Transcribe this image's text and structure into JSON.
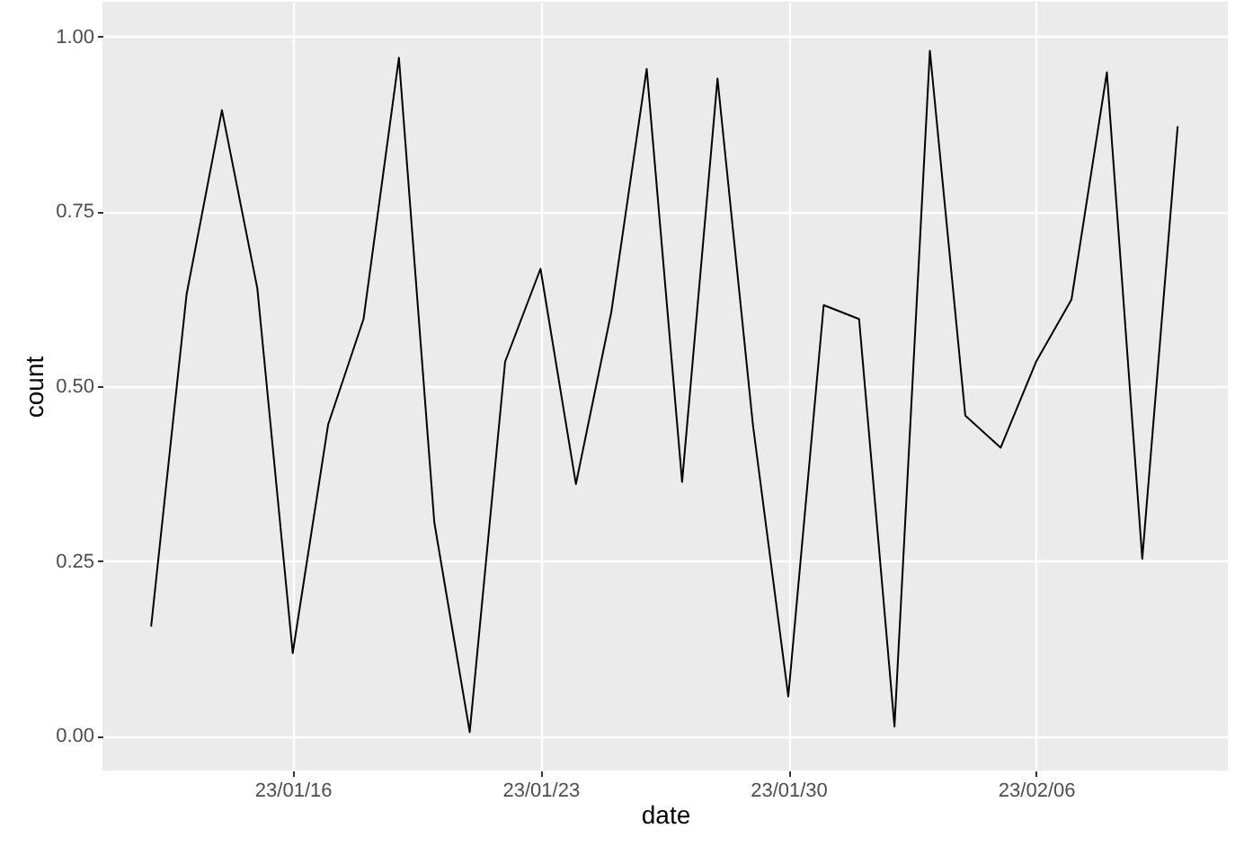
{
  "chart_data": {
    "type": "line",
    "xlabel": "date",
    "ylabel": "count",
    "x": [
      "--01-12",
      "--01-13",
      "--01-14",
      "--01-15",
      "--01-16",
      "--01-17",
      "--01-18",
      "--01-19",
      "--01-20",
      "--01-21",
      "--01-22",
      "--01-23",
      "--01-24",
      "--01-25",
      "--01-26",
      "--01-27",
      "--01-28",
      "--01-29",
      "--01-30",
      "--01-31",
      "--02-01",
      "--02-02",
      "--02-03",
      "--02-04",
      "--02-05",
      "--02-06",
      "--02-07",
      "--02-08",
      "--02-09",
      "--02-10"
    ],
    "series": [
      {
        "color": "#000000",
        "values": [
          0.156,
          0.631,
          0.895,
          0.64,
          0.118,
          0.445,
          0.596,
          0.97,
          0.305,
          0.005,
          0.535,
          0.668,
          0.36,
          0.606,
          0.954,
          0.363,
          0.94,
          0.445,
          0.056,
          0.616,
          0.596,
          0.013,
          0.98,
          0.458,
          0.412,
          0.535,
          0.624,
          0.949,
          0.253,
          0.872
        ]
      }
    ],
    "xlim": [
      "--01-10T15:00",
      "--02-11T10:00"
    ],
    "xticks": [
      {
        "value": "--01-16",
        "label": "23/01/16"
      },
      {
        "value": "--01-23",
        "label": "23/01/23"
      },
      {
        "value": "--01-30",
        "label": "23/01/30"
      },
      {
        "value": "--02-06",
        "label": "23/02/06"
      }
    ],
    "ylim": [
      -0.05,
      1.05
    ],
    "yticks": [
      {
        "value": 0,
        "label": "0.00"
      },
      {
        "value": 0.25,
        "label": "0.25"
      },
      {
        "value": 0.5,
        "label": "0.50"
      },
      {
        "value": 0.75,
        "label": "0.75"
      },
      {
        "value": 1,
        "label": "1.00"
      }
    ],
    "grid": true,
    "marker": "none",
    "line_style": "solid"
  }
}
